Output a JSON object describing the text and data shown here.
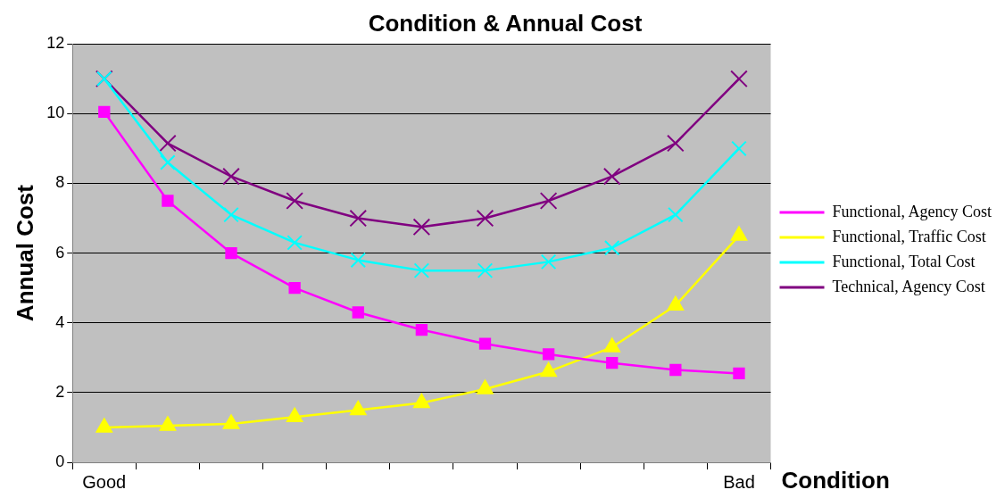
{
  "chart_data": {
    "type": "line",
    "title": "Condition & Annual Cost",
    "xlabel": "Condition",
    "ylabel": "Annual Cost",
    "categories": [
      "Good",
      null,
      null,
      null,
      null,
      null,
      null,
      null,
      null,
      null,
      "Bad"
    ],
    "ylim": [
      0,
      12
    ],
    "yticks": [
      0,
      2,
      4,
      6,
      8,
      10,
      12
    ],
    "grid": "y",
    "legend": "right",
    "line_style": "solid",
    "series": [
      {
        "name": "Functional, Agency Cost",
        "color": "#ff00ff",
        "marker": "square",
        "values": [
          10.05,
          7.5,
          6.0,
          5.0,
          4.3,
          3.8,
          3.4,
          3.1,
          2.85,
          2.65,
          2.55
        ]
      },
      {
        "name": "Functional, Traffic Cost",
        "color": "#ffff00",
        "marker": "triangle",
        "values": [
          1.0,
          1.05,
          1.1,
          1.3,
          1.5,
          1.7,
          2.1,
          2.6,
          3.3,
          4.5,
          6.5
        ]
      },
      {
        "name": "Functional, Total Cost",
        "color": "#00ffff",
        "marker": "cross",
        "values": [
          11,
          8.6,
          7.1,
          6.3,
          5.8,
          5.5,
          5.5,
          5.75,
          6.15,
          7.1,
          9.0
        ]
      },
      {
        "name": "Technical, Agency Cost",
        "color": "#800080",
        "marker": "cross",
        "values": [
          11,
          9.15,
          8.2,
          7.5,
          7.0,
          6.75,
          7.0,
          7.5,
          8.2,
          9.15,
          11
        ]
      }
    ]
  }
}
